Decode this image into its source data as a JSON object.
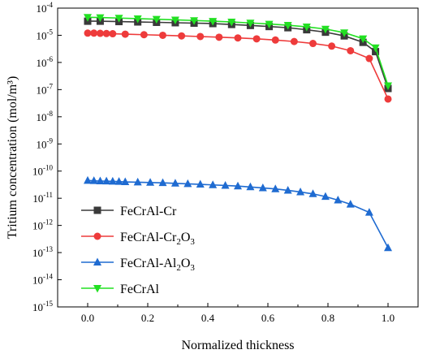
{
  "chart_data": {
    "type": "line",
    "xlabel": "Normalized thickness",
    "ylabel": "Tritium concentration (mol/m³)",
    "y_scale": "log",
    "xlim": [
      -0.1,
      1.1
    ],
    "ylim_exponents": [
      -15,
      -4
    ],
    "x_ticks": [
      "0.0",
      "0.2",
      "0.4",
      "0.6",
      "0.8",
      "1.0"
    ],
    "y_ticks": [
      {
        "base": "10",
        "exp": "-4"
      },
      {
        "base": "10",
        "exp": "-5"
      },
      {
        "base": "10",
        "exp": "-6"
      },
      {
        "base": "10",
        "exp": "-7"
      },
      {
        "base": "10",
        "exp": "-8"
      },
      {
        "base": "10",
        "exp": "-9"
      },
      {
        "base": "10",
        "exp": "-10"
      },
      {
        "base": "10",
        "exp": "-11"
      },
      {
        "base": "10",
        "exp": "-12"
      },
      {
        "base": "10",
        "exp": "-13"
      },
      {
        "base": "10",
        "exp": "-14"
      },
      {
        "base": "10",
        "exp": "-15"
      }
    ],
    "legend_position": "left-middle",
    "series": [
      {
        "name": "FeCrAl-Cr",
        "color": "#3a3a3a",
        "marker": "square",
        "x": [
          0.0,
          0.0417,
          0.1042,
          0.1667,
          0.2292,
          0.2917,
          0.3542,
          0.4167,
          0.4792,
          0.5417,
          0.6042,
          0.6667,
          0.7292,
          0.7917,
          0.8542,
          0.9167,
          0.9583,
          1.0
        ],
        "y": [
          3.3e-05,
          3.3e-05,
          3.2e-05,
          3.1e-05,
          3e-05,
          2.9e-05,
          2.8e-05,
          2.7e-05,
          2.5e-05,
          2.3e-05,
          2.1e-05,
          1.9e-05,
          1.6e-05,
          1.3e-05,
          9.5e-06,
          5.5e-06,
          2.5e-06,
          1.1e-07
        ]
      },
      {
        "name": "FeCrAl-Cr2O3",
        "label_main": "FeCrAl-Cr",
        "label_sub": "2",
        "label_tail": "O",
        "label_sub2": "3",
        "color": "#ee3b3b",
        "marker": "circle",
        "x": [
          0.0,
          0.0208,
          0.0417,
          0.0625,
          0.0833,
          0.125,
          0.1875,
          0.25,
          0.3125,
          0.375,
          0.4375,
          0.5,
          0.5625,
          0.625,
          0.6875,
          0.75,
          0.8125,
          0.875,
          0.9375,
          1.0
        ],
        "y": [
          1.2e-05,
          1.2e-05,
          1.18e-05,
          1.16e-05,
          1.14e-05,
          1.1e-05,
          1.05e-05,
          1e-05,
          9.5e-06,
          9e-06,
          8.5e-06,
          8e-06,
          7.4e-06,
          6.7e-06,
          5.9e-06,
          5e-06,
          4e-06,
          2.7e-06,
          1.4e-06,
          4.5e-08
        ]
      },
      {
        "name": "FeCrAl-Al2O3",
        "label_main": "FeCrAl-Al",
        "label_sub": "2",
        "label_tail": "O",
        "label_sub2": "3",
        "color": "#1f6bd1",
        "marker": "triangle-up",
        "x": [
          0.0,
          0.0208,
          0.0417,
          0.0625,
          0.0833,
          0.1042,
          0.125,
          0.1667,
          0.2083,
          0.25,
          0.2917,
          0.3333,
          0.375,
          0.4167,
          0.4583,
          0.5,
          0.5417,
          0.5833,
          0.625,
          0.6667,
          0.7083,
          0.75,
          0.7917,
          0.8333,
          0.875,
          0.9375,
          1.0
        ],
        "y": [
          4.5e-11,
          4.4e-11,
          4.3e-11,
          4.25e-11,
          4.2e-11,
          4.1e-11,
          4e-11,
          3.9e-11,
          3.8e-11,
          3.7e-11,
          3.55e-11,
          3.4e-11,
          3.25e-11,
          3.1e-11,
          2.95e-11,
          2.8e-11,
          2.6e-11,
          2.4e-11,
          2.2e-11,
          1.95e-11,
          1.7e-11,
          1.45e-11,
          1.15e-11,
          8.5e-12,
          6e-12,
          3e-12,
          1.5e-13
        ]
      },
      {
        "name": "FeCrAl",
        "color": "#22e022",
        "marker": "triangle-down",
        "x": [
          0.0,
          0.0417,
          0.1042,
          0.1667,
          0.2292,
          0.2917,
          0.3542,
          0.4167,
          0.4792,
          0.5417,
          0.6042,
          0.6667,
          0.7292,
          0.7917,
          0.8542,
          0.9167,
          0.9583,
          1.0
        ],
        "y": [
          4.6e-05,
          4.5e-05,
          4.3e-05,
          4.1e-05,
          3.9e-05,
          3.7e-05,
          3.5e-05,
          3.3e-05,
          3.1e-05,
          2.85e-05,
          2.6e-05,
          2.35e-05,
          2.05e-05,
          1.7e-05,
          1.25e-05,
          7.5e-06,
          3.5e-06,
          1.4e-07
        ]
      }
    ]
  }
}
